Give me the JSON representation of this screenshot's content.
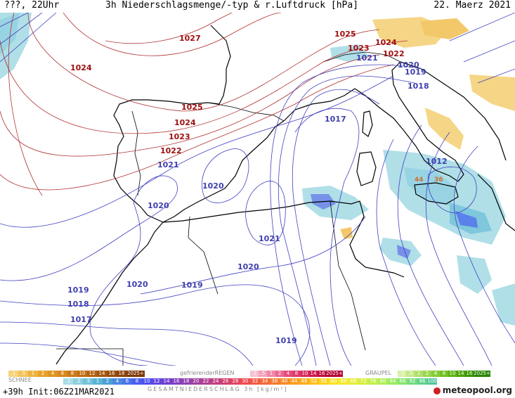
{
  "header": {
    "left": "???, 22Uhr",
    "title": "3h Niederschlagsmenge/-typ & r.Luftdruck [hPa]",
    "date": "22. Maerz 2021"
  },
  "isobars_red": [
    {
      "value": "1027"
    },
    {
      "value": "1025"
    },
    {
      "value": "1024"
    },
    {
      "value": "1025"
    },
    {
      "value": "1024"
    },
    {
      "value": "1023"
    },
    {
      "value": "1022"
    },
    {
      "value": "1024"
    },
    {
      "value": "1023"
    },
    {
      "value": "1022"
    }
  ],
  "isobars_blue": [
    {
      "value": "1021"
    },
    {
      "value": "1020"
    },
    {
      "value": "1019"
    },
    {
      "value": "1018"
    },
    {
      "value": "1017"
    },
    {
      "value": "1021"
    },
    {
      "value": "1020"
    },
    {
      "value": "1020"
    },
    {
      "value": "1021"
    },
    {
      "value": "1020"
    },
    {
      "value": "1020"
    },
    {
      "value": "1019"
    },
    {
      "value": "1019"
    },
    {
      "value": "1018"
    },
    {
      "value": "1017"
    },
    {
      "value": "1019"
    },
    {
      "value": "1012"
    }
  ],
  "precip_values": [
    "44",
    "36"
  ],
  "legend": {
    "snow_label": "SCHNEE",
    "freezing_label": "gefrierenderREGEN",
    "graupel_label": "GRAUPEL",
    "total_label": "GESAMTNIEDERSCHLAG 3h [kg/m²]",
    "snow_scale": [
      ".1",
      ".5",
      "1",
      "2",
      "4",
      "6",
      "8",
      "10",
      "12",
      "14",
      "16",
      "18",
      "2025+"
    ],
    "freezing_scale": [
      ".1",
      ".5",
      "1",
      "2",
      "4",
      "8",
      "10",
      "14",
      "16",
      "2025+"
    ],
    "graupel_scale": [
      ".1",
      ".5",
      "1",
      "2",
      "4",
      "8",
      "10",
      "14",
      "16",
      "2025+"
    ],
    "total_scale": [
      ".1",
      ".2",
      ".5",
      "1",
      "2",
      "4",
      "6",
      "8",
      "10",
      "12",
      "14",
      "16",
      "18",
      "20",
      "22",
      "24",
      "26",
      "28",
      "30",
      "32",
      "34",
      "36",
      "40",
      "44",
      "48",
      "52",
      "56",
      "60",
      "64",
      "68",
      "72",
      "76",
      "80",
      "84",
      "88",
      "92",
      "96",
      "100"
    ],
    "snow_colors": [
      "#f5d27a",
      "#f2c35a",
      "#eeb23e",
      "#e8a22a",
      "#e09422",
      "#d7871c",
      "#cc7a18",
      "#c06e14",
      "#b36211",
      "#a6570e",
      "#994c0c",
      "#8c420a",
      "#7f3808"
    ],
    "freezing_colors": [
      "#f7c1d0",
      "#f3a3bb",
      "#ef86a6",
      "#ea6891",
      "#e44b7c",
      "#de3a6c",
      "#d62a5d",
      "#cc1c4f",
      "#c01042",
      "#b30636"
    ],
    "graupel_colors": [
      "#d9f0a8",
      "#c6e88a",
      "#b1df6c",
      "#9bd650",
      "#86cc38",
      "#70c023",
      "#5cb313",
      "#49a507",
      "#389600",
      "#288600"
    ],
    "total_colors": [
      "#a8dce6",
      "#8dcfe0",
      "#72c2da",
      "#58b4d4",
      "#4aa0d8",
      "#4a8ae0",
      "#4a74e8",
      "#4a5ef0",
      "#5050f0",
      "#6046e0",
      "#7040d0",
      "#8040c0",
      "#9040b0",
      "#a040a0",
      "#b04090",
      "#c04080",
      "#d04070",
      "#e04460",
      "#ee4c50",
      "#f25a44",
      "#f46a3a",
      "#f67a30",
      "#f88a28",
      "#fa9c22",
      "#fcae1e",
      "#fec01c",
      "#fed21e",
      "#fee226",
      "#f6ea30",
      "#e8ee3a",
      "#d6f042",
      "#c2f04c",
      "#aeee56",
      "#9aea62",
      "#86e46e",
      "#72dc7c",
      "#60d28a",
      "#50c69a"
    ],
    "footer_left": "+39h Init:06Z21MAR2021",
    "brand": "meteopool.org"
  }
}
